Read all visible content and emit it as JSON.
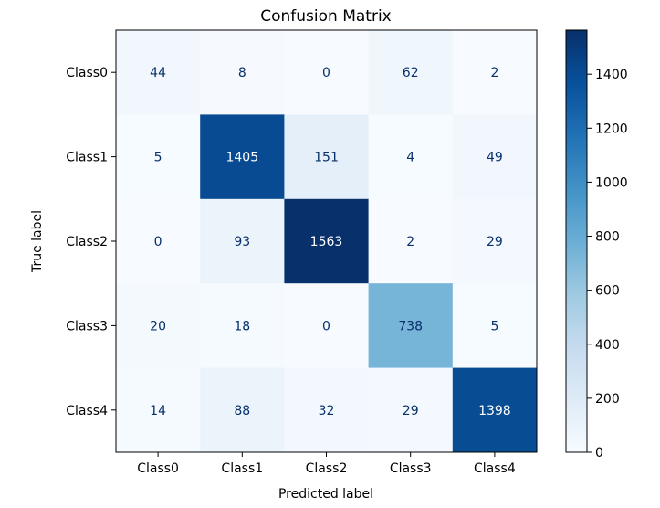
{
  "chart_data": {
    "type": "heatmap",
    "title": "Confusion Matrix",
    "xlabel": "Predicted label",
    "ylabel": "True label",
    "x_categories": [
      "Class0",
      "Class1",
      "Class2",
      "Class3",
      "Class4"
    ],
    "y_categories": [
      "Class0",
      "Class1",
      "Class2",
      "Class3",
      "Class4"
    ],
    "values": [
      [
        44,
        8,
        0,
        62,
        2
      ],
      [
        5,
        1405,
        151,
        4,
        49
      ],
      [
        0,
        93,
        1563,
        2,
        29
      ],
      [
        20,
        18,
        0,
        738,
        5
      ],
      [
        14,
        88,
        32,
        29,
        1398
      ]
    ],
    "colormap": "Blues",
    "colorbar": {
      "min": 0,
      "max": 1563,
      "ticks": [
        "0",
        "200",
        "400",
        "600",
        "800",
        "1000",
        "1200",
        "1400"
      ]
    },
    "grid": false
  }
}
